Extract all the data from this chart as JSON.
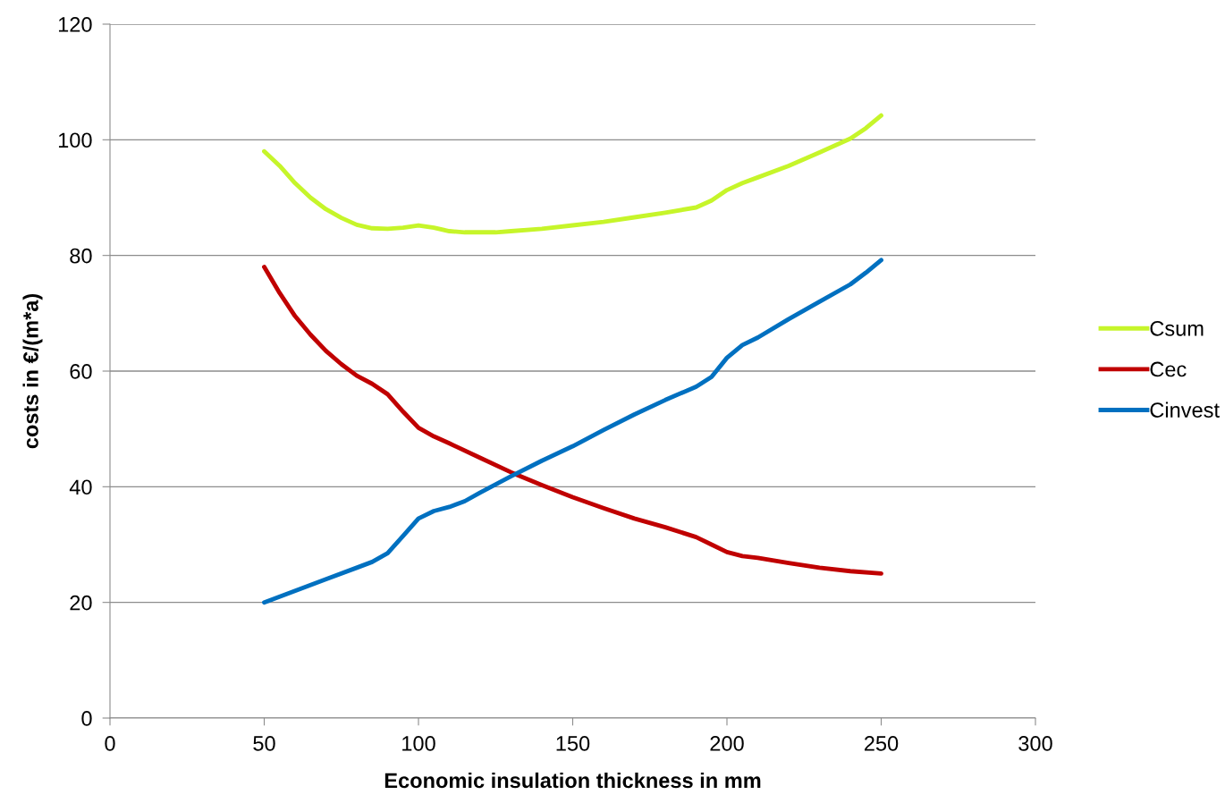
{
  "chart_data": {
    "type": "line",
    "xlabel": "Economic insulation thickness in mm",
    "ylabel": "costs in €/(m*a)",
    "xlim": [
      0,
      300
    ],
    "xticks": [
      0,
      50,
      100,
      150,
      200,
      250,
      300
    ],
    "ylim": [
      0,
      120
    ],
    "yticks": [
      0,
      20,
      40,
      60,
      80,
      100,
      120
    ],
    "grid": "y",
    "legend": "right",
    "line_style": "solid",
    "marker": "none",
    "series": [
      {
        "name": "Csum",
        "color": "#c6f52a",
        "x": [
          50,
          55,
          60,
          65,
          70,
          75,
          80,
          85,
          90,
          95,
          100,
          105,
          110,
          115,
          120,
          125,
          130,
          140,
          150,
          160,
          170,
          180,
          190,
          195,
          200,
          205,
          210,
          220,
          230,
          240,
          245,
          250
        ],
        "values": [
          98,
          95.5,
          92.5,
          90,
          88,
          86.5,
          85.3,
          84.7,
          84.6,
          84.8,
          85.2,
          84.8,
          84.2,
          84,
          84,
          84,
          84.2,
          84.6,
          85.2,
          85.8,
          86.6,
          87.4,
          88.3,
          89.5,
          91.3,
          92.5,
          93.5,
          95.5,
          97.8,
          100.2,
          102,
          104.2
        ]
      },
      {
        "name": "Cec",
        "color": "#c00000",
        "x": [
          50,
          55,
          60,
          65,
          70,
          75,
          80,
          85,
          90,
          95,
          100,
          105,
          110,
          120,
          130,
          140,
          150,
          160,
          170,
          180,
          190,
          195,
          200,
          205,
          210,
          220,
          230,
          240,
          250
        ],
        "values": [
          78,
          73.5,
          69.5,
          66.3,
          63.5,
          61.2,
          59.2,
          57.8,
          56,
          53,
          50.2,
          48.7,
          47.5,
          45,
          42.5,
          40.3,
          38.2,
          36.3,
          34.5,
          33,
          31.3,
          30,
          28.7,
          28,
          27.7,
          26.8,
          26,
          25.4,
          25
        ]
      },
      {
        "name": "Cinvest",
        "color": "#0070c0",
        "x": [
          50,
          60,
          70,
          80,
          85,
          90,
          95,
          100,
          105,
          110,
          115,
          120,
          130,
          140,
          150,
          160,
          170,
          180,
          190,
          195,
          200,
          205,
          210,
          220,
          230,
          240,
          245,
          250
        ],
        "values": [
          20,
          22,
          24,
          26,
          27,
          28.5,
          31.5,
          34.5,
          35.8,
          36.5,
          37.5,
          39,
          41.8,
          44.5,
          47,
          49.8,
          52.5,
          55,
          57.3,
          59,
          62.3,
          64.5,
          65.8,
          69,
          72,
          75,
          77,
          79.2
        ]
      }
    ]
  }
}
